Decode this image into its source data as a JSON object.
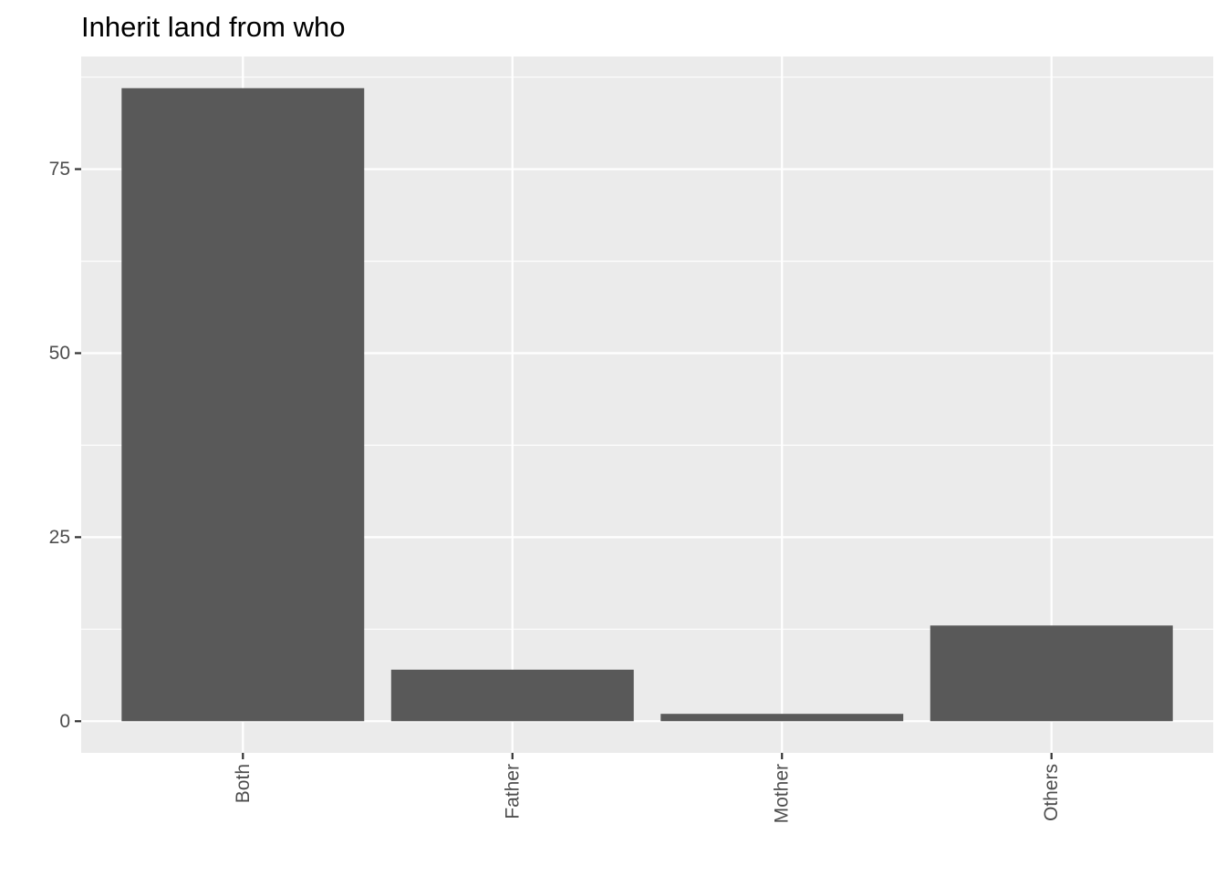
{
  "chart_data": {
    "type": "bar",
    "title": "Inherit land from who",
    "xlabel": "",
    "ylabel": "",
    "categories": [
      "Both",
      "Father",
      "Mother",
      "Others"
    ],
    "values": [
      86,
      7,
      1,
      13
    ],
    "ylim": [
      -4.3,
      90.3
    ],
    "yticks": [
      0,
      25,
      50,
      75
    ],
    "ytick_labels": [
      "0",
      "25",
      "50",
      "75"
    ],
    "x_tick_label_rotation": "vertical",
    "grid": true,
    "legend": "none",
    "colors": {
      "bar": "#595959",
      "panel_background": "#ebebeb",
      "grid": "#ffffff",
      "tick": "#333333",
      "tick_label": "#4d4d4d",
      "title": "#000000"
    }
  }
}
